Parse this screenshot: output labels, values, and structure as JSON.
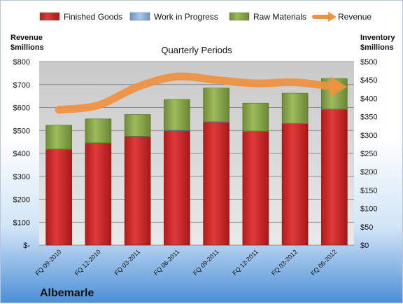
{
  "chart_data": {
    "type": "bar",
    "title": "Quarterly Periods",
    "company": "Albemarle",
    "left_axis_label": [
      "Revenue",
      "$millions"
    ],
    "right_axis_label": [
      "Inventory",
      "$millions"
    ],
    "categories": [
      "FQ 09-2010",
      "FQ 12-2010",
      "FQ 03-2011",
      "FQ 06-2011",
      "FQ 09-2011",
      "FQ 12-2011",
      "FQ 03-2012",
      "FQ 06-2012"
    ],
    "left_ticks": [
      "$-",
      "$100",
      "$200",
      "$300",
      "$400",
      "$500",
      "$600",
      "$700",
      "$800"
    ],
    "right_ticks": [
      "$0",
      "$50",
      "$100",
      "$150",
      "$200",
      "$250",
      "$300",
      "$350",
      "$400",
      "$450",
      "$500"
    ],
    "left_ylim": [
      0,
      800
    ],
    "right_ylim": [
      0,
      500
    ],
    "stacked": true,
    "series": [
      {
        "name": "Finished Goods",
        "axis": "right",
        "color": "#d42a2a",
        "values": [
          261,
          278,
          296,
          312,
          335,
          310,
          331,
          370
        ]
      },
      {
        "name": "Work in Progress",
        "axis": "right",
        "color": "#8db4e2",
        "values": [
          1,
          1,
          1,
          1,
          1,
          1,
          1,
          1
        ]
      },
      {
        "name": "Raw Materials",
        "axis": "right",
        "color": "#8aa84e",
        "values": [
          65,
          65,
          59,
          84,
          92,
          76,
          82,
          83
        ]
      }
    ],
    "line_series": {
      "name": "Revenue",
      "axis": "left",
      "color": "#f0913e",
      "values": [
        590,
        610,
        690,
        735,
        720,
        705,
        710,
        690
      ]
    },
    "grid": true,
    "legend_position": "top"
  }
}
